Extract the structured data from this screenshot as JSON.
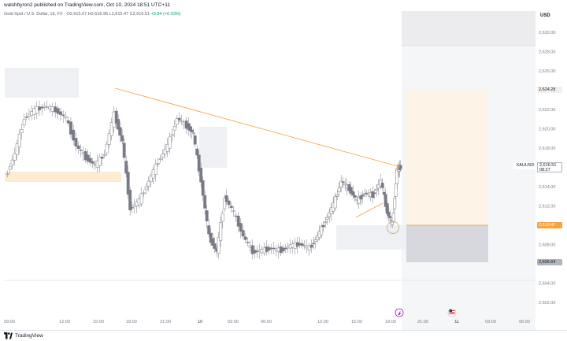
{
  "header": {
    "publisher_line": "walshbyron2 published on TradingView.com, Oct 10, 2024 18:51 UTC+11"
  },
  "legend": {
    "symbol": "Gold Spot / U.S. Dollar, 15, FX",
    "open": "O2,615.67",
    "high": "H2,616.95",
    "low": "L2,615.47",
    "close": "C2,616.51",
    "change": "+0.84 (+0.03%)"
  },
  "price_axis": {
    "currency": "USD",
    "ticks": [
      "2,630.00",
      "2,628.00",
      "2,626.00",
      "2,624.00",
      "2,622.00",
      "2,620.00",
      "2,618.00",
      "2,616.00",
      "2,614.00",
      "2,612.00",
      "2,610.00",
      "2,608.00",
      "2,606.00",
      "2,604.00",
      "2,602.00"
    ],
    "tag_upper": "2,624.28",
    "tag_entry": "2,610.47",
    "tag_lower": "2,606.64",
    "symbol_tag": "XAUUSD",
    "last_price": "2,616.51",
    "countdown": "08:27"
  },
  "time_axis": {
    "ticks": [
      "09:00",
      "12:00",
      "15:00",
      "18:00",
      "21:00",
      "10",
      "03:00",
      "06:00",
      "12:00",
      "15:00",
      "18:00",
      "21:00",
      "11",
      "03:00",
      "06:00"
    ]
  },
  "footer": {
    "brand": "TradingView"
  },
  "colors": {
    "up": "#ffffff",
    "down": "#787b86",
    "trendline": "#f7a43f",
    "zone_orange": "#fdebd2",
    "zone_gray": "#e0e3eb"
  },
  "chart_data": {
    "type": "candlestick",
    "y_range": [
      2601.0,
      2631.5
    ],
    "price_levels": {
      "upper_target": 2624.28,
      "entry": 2610.47,
      "stop": 2606.64,
      "last": 2616.51
    }
  }
}
